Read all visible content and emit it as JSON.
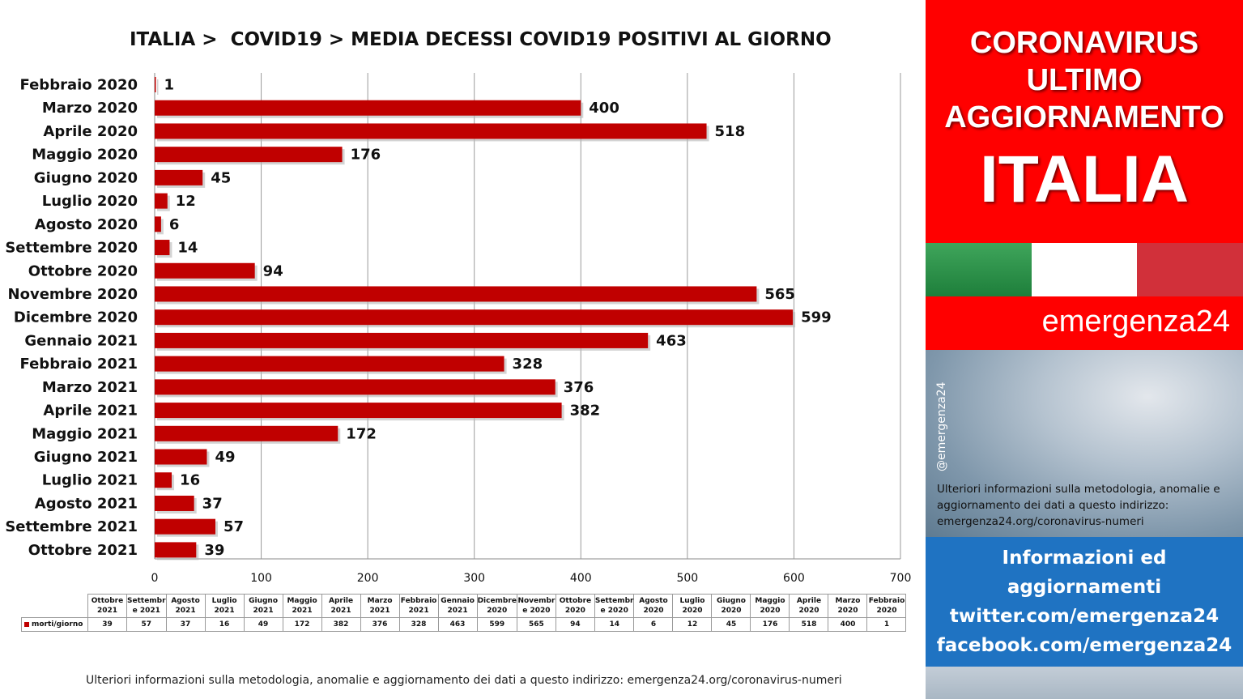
{
  "chart_data": {
    "type": "bar",
    "orientation": "horizontal",
    "title": "ITALIA >  COVID19 > MEDIA DECESSI COVID19 POSITIVI AL GIORNO",
    "categories": [
      "Febbraio 2020",
      "Marzo 2020",
      "Aprile 2020",
      "Maggio 2020",
      "Giugno 2020",
      "Luglio 2020",
      "Agosto 2020",
      "Settembre 2020",
      "Ottobre 2020",
      "Novembre 2020",
      "Dicembre 2020",
      "Gennaio 2021",
      "Febbraio 2021",
      "Marzo 2021",
      "Aprile 2021",
      "Maggio 2021",
      "Giugno 2021",
      "Luglio 2021",
      "Agosto 2021",
      "Settembre 2021",
      "Ottobre 2021"
    ],
    "series": [
      {
        "name": "morti/giorno",
        "color": "#c00000",
        "values": [
          1,
          400,
          518,
          176,
          45,
          12,
          6,
          14,
          94,
          565,
          599,
          463,
          328,
          376,
          382,
          172,
          49,
          16,
          37,
          57,
          39
        ]
      }
    ],
    "xlim": [
      0,
      700
    ],
    "xticks": [
      "0",
      "100",
      "200",
      "300",
      "400",
      "500",
      "600",
      "700"
    ],
    "grid": true,
    "data_labels": true
  },
  "data_table": {
    "headers": [
      "Ottobre 2021",
      "Settembr e 2021",
      "Agosto 2021",
      "Luglio 2021",
      "Giugno 2021",
      "Maggio 2021",
      "Aprile 2021",
      "Marzo 2021",
      "Febbraio 2021",
      "Gennaio 2021",
      "Dicembre 2020",
      "Novembr e 2020",
      "Ottobre 2020",
      "Settembr e 2020",
      "Agosto 2020",
      "Luglio 2020",
      "Giugno 2020",
      "Maggio 2020",
      "Aprile 2020",
      "Marzo 2020",
      "Febbraio 2020"
    ],
    "series_label": "morti/giorno",
    "values": [
      "39",
      "57",
      "37",
      "16",
      "49",
      "172",
      "382",
      "376",
      "328",
      "463",
      "599",
      "565",
      "94",
      "14",
      "6",
      "12",
      "45",
      "176",
      "518",
      "400",
      "1"
    ]
  },
  "footnote": "Ulteriori informazioni sulla metodologia, anomalie e aggiornamento dei dati a questo indirizzo: emergenza24.org/coronavirus-numeri",
  "sidebar": {
    "headline_1": "CORONAVIRUS",
    "headline_2": "ULTIMO",
    "headline_3": "AGGIORNAMENTO",
    "country": "ITALIA",
    "flag_colors": [
      "#1e7f3b",
      "#ffffff",
      "#d1303a"
    ],
    "brand": "emergenza24",
    "handle": "@emergenza24",
    "info_text": "Ulteriori informazioni sulla metodologia, anomalie e aggiornamento dei dati a questo indirizzo: emergenza24.org/coronavirus-numeri",
    "links_1": "Informazioni ed",
    "links_2": "aggiornamenti",
    "links_3": "twitter.com/emergenza24",
    "links_4": "facebook.com/emergenza24"
  }
}
